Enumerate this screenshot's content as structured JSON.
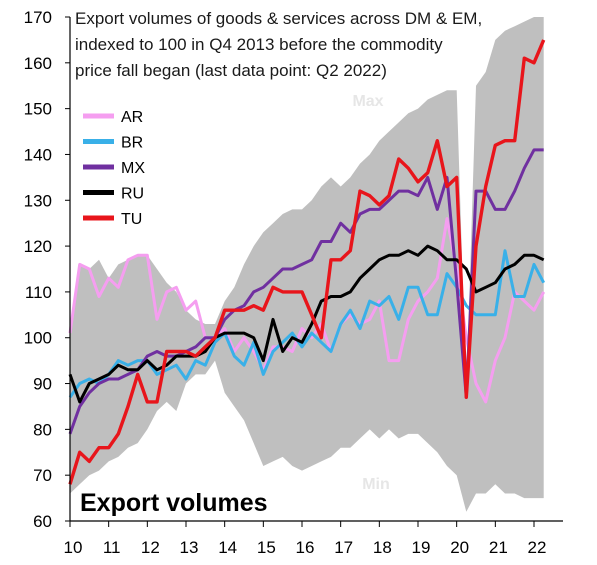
{
  "chart_data": {
    "type": "line",
    "title_lines": [
      "Export volumes of goods & services across DM & EM,",
      "indexed to 100 in Q4 2013  before the commodity",
      "price fall began (last data point: Q2 2022)"
    ],
    "annotation": "Export  volumes",
    "band_labels": {
      "max": "Max",
      "min": "Min"
    },
    "xlim": [
      2010.0,
      2022.75
    ],
    "ylim": [
      60,
      170
    ],
    "x_ticks": [
      {
        "value": 2010,
        "label": "10"
      },
      {
        "value": 2011,
        "label": "11"
      },
      {
        "value": 2012,
        "label": "12"
      },
      {
        "value": 2013,
        "label": "13"
      },
      {
        "value": 2014,
        "label": "14"
      },
      {
        "value": 2015,
        "label": "15"
      },
      {
        "value": 2016,
        "label": "16"
      },
      {
        "value": 2017,
        "label": "17"
      },
      {
        "value": 2018,
        "label": "18"
      },
      {
        "value": 2019,
        "label": "19"
      },
      {
        "value": 2020,
        "label": "20"
      },
      {
        "value": 2021,
        "label": "21"
      },
      {
        "value": 2022,
        "label": "22"
      }
    ],
    "y_ticks": [
      60,
      70,
      80,
      90,
      100,
      110,
      120,
      130,
      140,
      150,
      160,
      170
    ],
    "legend_position": "top-left",
    "band": {
      "x": [
        2010.0,
        2010.25,
        2010.5,
        2010.75,
        2011.0,
        2011.25,
        2011.5,
        2011.75,
        2012.0,
        2012.25,
        2012.5,
        2012.75,
        2013.0,
        2013.25,
        2013.5,
        2013.75,
        2014.0,
        2014.25,
        2014.5,
        2014.75,
        2015.0,
        2015.25,
        2015.5,
        2015.75,
        2016.0,
        2016.25,
        2016.5,
        2016.75,
        2017.0,
        2017.25,
        2017.5,
        2017.75,
        2018.0,
        2018.25,
        2018.5,
        2018.75,
        2019.0,
        2019.25,
        2019.5,
        2019.75,
        2020.0,
        2020.25,
        2020.5,
        2020.75,
        2021.0,
        2021.25,
        2021.5,
        2021.75,
        2022.0,
        2022.25
      ],
      "max": [
        102,
        116,
        115,
        117,
        113,
        116,
        117,
        118,
        118,
        115,
        112,
        110,
        106,
        104,
        103,
        103,
        108,
        111,
        116,
        120,
        123,
        125,
        127,
        128,
        128,
        130,
        133,
        135,
        133,
        135,
        138,
        140,
        143,
        145,
        147,
        149,
        150,
        152,
        153,
        154,
        154,
        88,
        155,
        158,
        165,
        167,
        168,
        169,
        170,
        170
      ],
      "min": [
        66,
        68,
        70,
        71,
        73,
        74,
        76,
        77,
        80,
        84,
        86,
        84,
        90,
        92,
        92,
        95,
        88,
        85,
        82,
        77,
        72,
        73,
        74,
        72,
        71,
        72,
        73,
        74,
        76,
        76,
        78,
        80,
        78,
        80,
        78,
        79,
        79,
        77,
        75,
        72,
        70,
        62,
        66,
        66,
        68,
        66,
        66,
        65,
        65,
        65
      ]
    },
    "series": [
      {
        "name": "AR",
        "color": "#f59ef0",
        "x": [
          2010.0,
          2010.25,
          2010.5,
          2010.75,
          2011.0,
          2011.25,
          2011.5,
          2011.75,
          2012.0,
          2012.25,
          2012.5,
          2012.75,
          2013.0,
          2013.25,
          2013.5,
          2013.75,
          2014.0,
          2014.25,
          2014.5,
          2014.75,
          2015.0,
          2015.25,
          2015.5,
          2015.75,
          2016.0,
          2016.25,
          2016.5,
          2016.75,
          2017.0,
          2017.25,
          2017.5,
          2017.75,
          2018.0,
          2018.25,
          2018.5,
          2018.75,
          2019.0,
          2019.25,
          2019.5,
          2019.75,
          2020.0,
          2020.25,
          2020.5,
          2020.75,
          2021.0,
          2021.25,
          2021.5,
          2021.75,
          2022.0,
          2022.25
        ],
        "values": [
          101,
          116,
          115,
          109,
          113,
          111,
          117,
          118,
          118,
          104,
          110,
          111,
          106,
          108,
          100,
          100,
          102,
          97,
          100,
          97,
          93,
          98,
          98,
          97,
          102,
          100,
          103,
          97,
          103,
          105,
          103,
          104,
          108,
          95,
          95,
          104,
          108,
          110,
          113,
          126,
          115,
          100,
          90,
          86,
          95,
          100,
          110,
          108,
          106,
          110
        ]
      },
      {
        "name": "BR",
        "color": "#39b0e8",
        "x": [
          2010.0,
          2010.25,
          2010.5,
          2010.75,
          2011.0,
          2011.25,
          2011.5,
          2011.75,
          2012.0,
          2012.25,
          2012.5,
          2012.75,
          2013.0,
          2013.25,
          2013.5,
          2013.75,
          2014.0,
          2014.25,
          2014.5,
          2014.75,
          2015.0,
          2015.25,
          2015.5,
          2015.75,
          2016.0,
          2016.25,
          2016.5,
          2016.75,
          2017.0,
          2017.25,
          2017.5,
          2017.75,
          2018.0,
          2018.25,
          2018.5,
          2018.75,
          2019.0,
          2019.25,
          2019.5,
          2019.75,
          2020.0,
          2020.25,
          2020.5,
          2020.75,
          2021.0,
          2021.25,
          2021.5,
          2021.75,
          2022.0,
          2022.25
        ],
        "values": [
          87,
          90,
          91,
          90,
          92,
          95,
          94,
          95,
          95,
          92,
          93,
          94,
          91,
          95,
          94,
          99,
          101,
          96,
          94,
          99,
          92,
          97,
          99,
          101,
          98,
          101,
          99,
          97,
          103,
          106,
          102,
          108,
          107,
          109,
          104,
          111,
          111,
          105,
          105,
          114,
          111,
          107,
          105,
          105,
          105,
          119,
          109,
          109,
          116,
          112
        ]
      },
      {
        "name": "MX",
        "color": "#7030a0",
        "x": [
          2010.0,
          2010.25,
          2010.5,
          2010.75,
          2011.0,
          2011.25,
          2011.5,
          2011.75,
          2012.0,
          2012.25,
          2012.5,
          2012.75,
          2013.0,
          2013.25,
          2013.5,
          2013.75,
          2014.0,
          2014.25,
          2014.5,
          2014.75,
          2015.0,
          2015.25,
          2015.5,
          2015.75,
          2016.0,
          2016.25,
          2016.5,
          2016.75,
          2017.0,
          2017.25,
          2017.5,
          2017.75,
          2018.0,
          2018.25,
          2018.5,
          2018.75,
          2019.0,
          2019.25,
          2019.5,
          2019.75,
          2020.0,
          2020.25,
          2020.5,
          2020.75,
          2021.0,
          2021.25,
          2021.5,
          2021.75,
          2022.0,
          2022.25
        ],
        "values": [
          79,
          85,
          88,
          90,
          91,
          91,
          92,
          93,
          96,
          97,
          96,
          96,
          97,
          98,
          100,
          100,
          104,
          106,
          107,
          110,
          111,
          113,
          115,
          115,
          116,
          117,
          121,
          121,
          125,
          123,
          127,
          128,
          128,
          130,
          132,
          132,
          131,
          135,
          128,
          135,
          112,
          87,
          132,
          132,
          128,
          128,
          132,
          137,
          141,
          141
        ]
      },
      {
        "name": "RU",
        "color": "#000000",
        "x": [
          2010.0,
          2010.25,
          2010.5,
          2010.75,
          2011.0,
          2011.25,
          2011.5,
          2011.75,
          2012.0,
          2012.25,
          2012.5,
          2012.75,
          2013.0,
          2013.25,
          2013.5,
          2013.75,
          2014.0,
          2014.25,
          2014.5,
          2014.75,
          2015.0,
          2015.25,
          2015.5,
          2015.75,
          2016.0,
          2016.25,
          2016.5,
          2016.75,
          2017.0,
          2017.25,
          2017.5,
          2017.75,
          2018.0,
          2018.25,
          2018.5,
          2018.75,
          2019.0,
          2019.25,
          2019.5,
          2019.75,
          2020.0,
          2020.25,
          2020.5,
          2020.75,
          2021.0,
          2021.25,
          2021.5,
          2021.75,
          2022.0,
          2022.25
        ],
        "values": [
          92,
          86,
          90,
          91,
          92,
          94,
          93,
          93,
          95,
          93,
          94,
          96,
          96,
          96,
          97,
          100,
          101,
          101,
          101,
          100,
          95,
          104,
          97,
          100,
          99,
          103,
          108,
          109,
          109,
          110,
          113,
          115,
          117,
          118,
          118,
          119,
          118,
          120,
          119,
          117,
          117,
          115,
          110,
          111,
          112,
          115,
          116,
          118,
          118,
          117
        ]
      },
      {
        "name": "TU",
        "color": "#e8151b",
        "x": [
          2010.0,
          2010.25,
          2010.5,
          2010.75,
          2011.0,
          2011.25,
          2011.5,
          2011.75,
          2012.0,
          2012.25,
          2012.5,
          2012.75,
          2013.0,
          2013.25,
          2013.5,
          2013.75,
          2014.0,
          2014.25,
          2014.5,
          2014.75,
          2015.0,
          2015.25,
          2015.5,
          2015.75,
          2016.0,
          2016.25,
          2016.5,
          2016.75,
          2017.0,
          2017.25,
          2017.5,
          2017.75,
          2018.0,
          2018.25,
          2018.5,
          2018.75,
          2019.0,
          2019.25,
          2019.5,
          2019.75,
          2020.0,
          2020.25,
          2020.5,
          2020.75,
          2021.0,
          2021.25,
          2021.5,
          2021.75,
          2022.0,
          2022.25
        ],
        "values": [
          68,
          75,
          73,
          76,
          76,
          79,
          85,
          92,
          86,
          86,
          97,
          97,
          97,
          96,
          98,
          100,
          106,
          106,
          106,
          107,
          106,
          111,
          110,
          110,
          110,
          105,
          100,
          117,
          117,
          119,
          132,
          131,
          129,
          131,
          139,
          137,
          134,
          136,
          143,
          133,
          135,
          87,
          120,
          133,
          142,
          143,
          143,
          161,
          160,
          165
        ]
      }
    ]
  }
}
